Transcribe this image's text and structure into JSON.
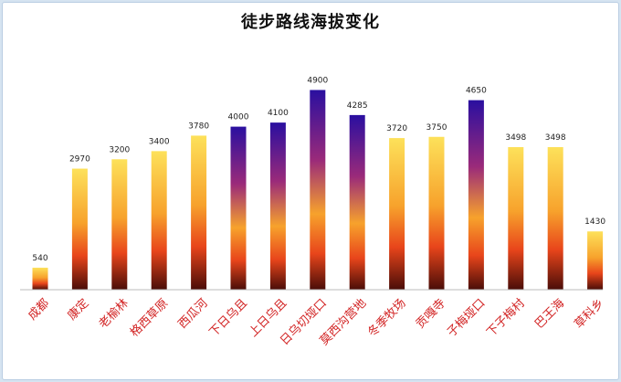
{
  "chart_data": {
    "type": "bar",
    "title": "徒步路线海拔变化",
    "categories": [
      "成都",
      "康定",
      "老榆林",
      "格西草原",
      "西瓜河",
      "下日乌且",
      "上日乌且",
      "日乌切垭口",
      "莫西沟营地",
      "冬季牧场",
      "贡嘎寺",
      "子梅垭口",
      "下子梅村",
      "巴王海",
      "草科乡"
    ],
    "values": [
      540,
      2970,
      3200,
      3400,
      3780,
      4000,
      4100,
      4900,
      4285,
      3720,
      3750,
      4650,
      3498,
      3498,
      1430
    ],
    "value_labels": [
      "540",
      "2970",
      "3200",
      "3400",
      "3780",
      "4000",
      "4100",
      "4900",
      "4285",
      "3720",
      "3750",
      "4650",
      "3498",
      "3498",
      "1430"
    ],
    "xlabel": "",
    "ylabel": "",
    "ylim": [
      0,
      5000
    ],
    "grid": false,
    "legend": "none",
    "colors": {
      "warm_top": "#fde15a",
      "warm_mid": "#f7a22c",
      "warm_low": "#e8451b",
      "warm_base": "#4a0d08",
      "cool_top": "#2a0fa0",
      "cool_mid": "#9a2a7a",
      "label_red": "#d22424"
    },
    "cool_threshold": 3900
  }
}
